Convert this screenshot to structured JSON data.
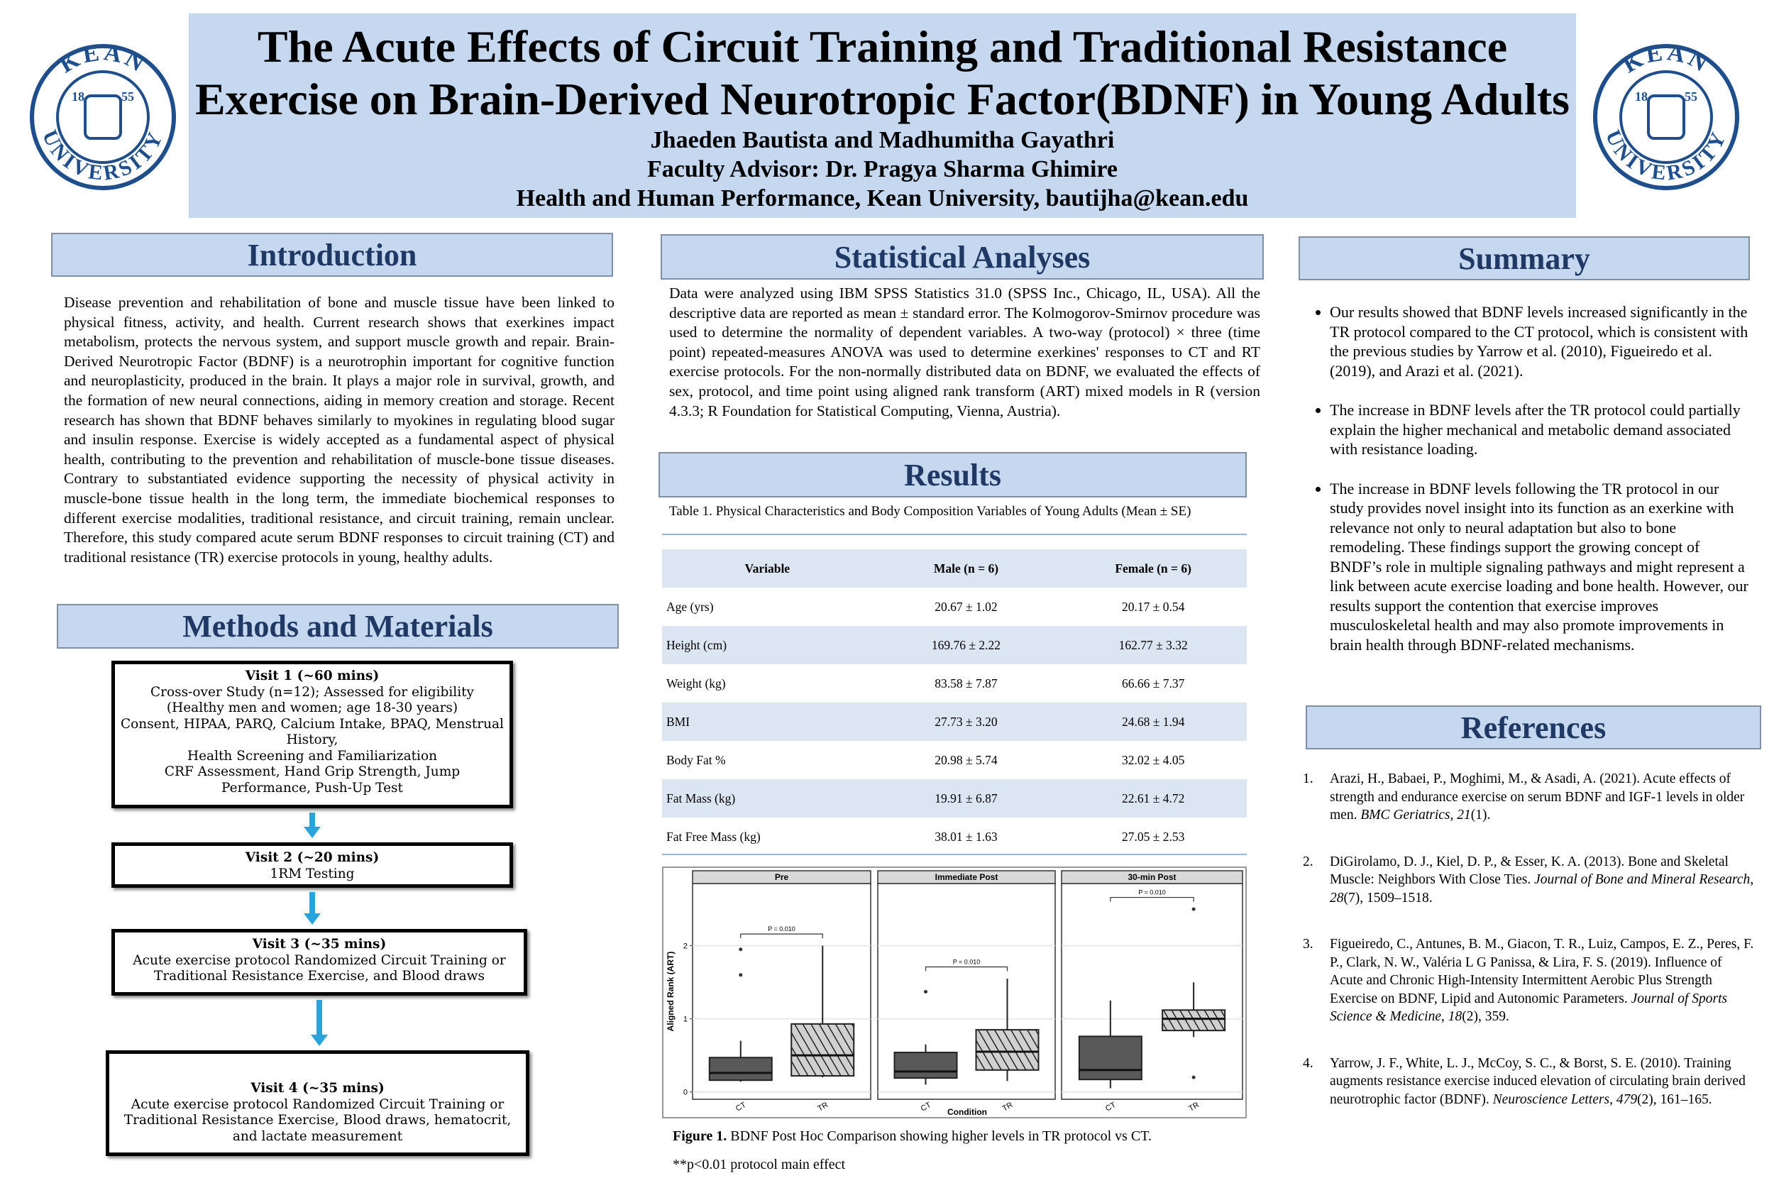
{
  "header": {
    "title_lines": [
      "The Acute Effects of Circuit Training and Traditional Resistance",
      "Exercise on Brain-Derived Neurotropic Factor(BDNF) in Young Adults"
    ],
    "authors": "Jhaeden Bautista and Madhumitha Gayathri",
    "advisor": "Faculty Advisor: Dr. Pragya Sharma Ghimire",
    "affiliation": "Health and Human Performance, Kean University, bautijha@kean.edu"
  },
  "logo": {
    "top": "KEAN",
    "bottom": "UNIVERSITY",
    "year_left": "18",
    "year_right": "55"
  },
  "introduction": {
    "heading": "Introduction",
    "text": "Disease prevention and rehabilitation of bone and muscle tissue have been linked to physical fitness, activity, and health. Current research shows that exerkines impact metabolism, protects the nervous system, and support muscle growth and repair. Brain-Derived Neurotropic Factor (BDNF) is a neurotrophin important for cognitive function and neuroplasticity, produced in the brain. It plays a major role in survival, growth, and the formation of new neural connections, aiding in memory creation and storage. Recent research has shown that BDNF behaves similarly to myokines in regulating blood sugar and insulin response. Exercise is widely accepted as a fundamental aspect of physical health, contributing to the prevention and rehabilitation of muscle-bone tissue diseases. Contrary to substantiated evidence supporting the necessity of physical activity in muscle-bone tissue health in the long term, the immediate biochemical responses to different exercise modalities, traditional resistance, and circuit training, remain unclear. Therefore, this study compared acute serum BDNF responses to circuit training (CT) and traditional resistance (TR) exercise protocols in young, healthy adults."
  },
  "methods": {
    "heading": "Methods and Materials",
    "visits": [
      {
        "title": "Visit 1 (~60 mins)",
        "lines": [
          "Cross-over Study (n=12); Assessed for eligibility",
          "(Healthy men and women; age 18-30 years)",
          "Consent, HIPAA, PARQ, Calcium Intake, BPAQ, Menstrual History,",
          "Health Screening and Familiarization",
          "CRF Assessment, Hand Grip Strength, Jump Performance, Push-Up Test"
        ]
      },
      {
        "title": "Visit 2 (~20 mins)",
        "lines": [
          "1RM Testing"
        ]
      },
      {
        "title": "Visit 3 (~35 mins)",
        "lines": [
          "Acute exercise protocol Randomized Circuit Training or Traditional Resistance Exercise, and Blood draws"
        ]
      },
      {
        "title": "Visit 4 (~35 mins)",
        "lines": [
          "Acute exercise protocol Randomized Circuit Training or Traditional Resistance Exercise, Blood draws, hematocrit, and lactate measurement"
        ]
      }
    ]
  },
  "statistics": {
    "heading": "Statistical Analyses",
    "text": "Data were analyzed using IBM SPSS Statistics 31.0 (SPSS Inc., Chicago, IL, USA). All the descriptive data are reported as mean ± standard error. The Kolmogorov-Smirnov procedure was used to determine the normality of dependent variables. A two-way (protocol) × three (time point) repeated-measures ANOVA was used to determine exerkines' responses to CT and RT exercise protocols. For the non-normally distributed data on BDNF, we evaluated the effects of sex, protocol, and time point using aligned rank transform (ART) mixed models in R (version 4.3.3; R Foundation for Statistical Computing, Vienna, Austria)."
  },
  "results": {
    "heading": "Results",
    "table": {
      "caption": "Table 1. Physical Characteristics and Body Composition Variables of Young Adults (Mean ± SE)",
      "columns": [
        "Variable",
        "Male (n = 6)",
        "Female (n = 6)"
      ],
      "rows": [
        [
          "Age (yrs)",
          "20.67 ± 1.02",
          "20.17 ± 0.54"
        ],
        [
          "Height (cm)",
          "169.76 ± 2.22",
          "162.77 ± 3.32"
        ],
        [
          "Weight (kg)",
          "83.58 ± 7.87",
          "66.66 ± 7.37"
        ],
        [
          "BMI",
          "27.73 ± 3.20",
          "24.68 ± 1.94"
        ],
        [
          "Body Fat %",
          "20.98 ± 5.74",
          "32.02 ± 4.05"
        ],
        [
          "Fat Mass (kg)",
          "19.91 ± 6.87",
          "22.61 ± 4.72"
        ],
        [
          "Fat Free Mass (kg)",
          "38.01 ± 1.63",
          "27.05 ± 2.53"
        ]
      ]
    },
    "figure": {
      "type": "box",
      "ylabel": "Aligned Rank (ART)",
      "xlabel": "Condition",
      "ylim": [
        -0.1,
        2.85
      ],
      "yticks": [
        0,
        1,
        2
      ],
      "panels": [
        {
          "title": "Pre",
          "annotation": "P = 0.010",
          "boxes": [
            {
              "label": "CT",
              "whisker_low": 0.14,
              "q1": 0.16,
              "median": 0.26,
              "q3": 0.47,
              "whisker_high": 0.7,
              "outliers": [
                1.6,
                1.95
              ]
            },
            {
              "label": "TR",
              "whisker_low": 0.2,
              "q1": 0.22,
              "median": 0.5,
              "q3": 0.93,
              "whisker_high": 2.0,
              "outliers": []
            }
          ]
        },
        {
          "title": "Immediate Post",
          "annotation": "P = 0.010",
          "boxes": [
            {
              "label": "CT",
              "whisker_low": 0.1,
              "q1": 0.19,
              "median": 0.28,
              "q3": 0.54,
              "whisker_high": 0.65,
              "outliers": [
                1.37
              ]
            },
            {
              "label": "TR",
              "whisker_low": 0.15,
              "q1": 0.3,
              "median": 0.55,
              "q3": 0.85,
              "whisker_high": 1.55,
              "outliers": []
            }
          ]
        },
        {
          "title": "30-min Post",
          "annotation": "P = 0.010",
          "boxes": [
            {
              "label": "CT",
              "whisker_low": 0.05,
              "q1": 0.17,
              "median": 0.3,
              "q3": 0.76,
              "whisker_high": 1.25,
              "outliers": []
            },
            {
              "label": "TR",
              "whisker_low": 0.75,
              "q1": 0.84,
              "median": 1.0,
              "q3": 1.12,
              "whisker_high": 1.5,
              "outliers": [
                2.5,
                0.2
              ]
            }
          ]
        }
      ],
      "caption_label": "Figure 1.",
      "caption": "BDNF Post Hoc Comparison showing higher levels in TR protocol vs CT.",
      "note": "**p<0.01 protocol main effect"
    }
  },
  "summary": {
    "heading": "Summary",
    "bullets": [
      "Our results showed that BDNF levels increased significantly in the TR protocol compared to the CT protocol, which is consistent with the previous studies by Yarrow et al. (2010), Figueiredo et al. (2019), and Arazi et al. (2021).",
      "The increase in BDNF levels after the TR protocol could partially explain the higher mechanical and metabolic demand associated with resistance loading.",
      "The increase in BDNF levels following the TR protocol in our study provides novel insight into its function as an exerkine with relevance not only to neural adaptation but also to bone remodeling. These findings support the growing concept of BNDF’s role in multiple signaling pathways and might represent a link between acute exercise loading and bone health. However, our results support the contention that exercise improves musculoskeletal health and may also promote improvements in brain health through BDNF-related mechanisms."
    ]
  },
  "references": {
    "heading": "References",
    "items": [
      {
        "number": "1.",
        "parts": [
          "Arazi, H., Babaei, P., Moghimi, M., & Asadi, A. (2021). Acute effects of strength and endurance exercise on serum BDNF and IGF-1 levels in older men. ",
          {
            "text": "BMC Geriatrics",
            "italic": true
          },
          ", ",
          {
            "text": "21",
            "italic": true
          },
          "(1)."
        ]
      },
      {
        "number": "2.",
        "parts": [
          "DiGirolamo, D. J., Kiel, D. P., & Esser, K. A. (2013). Bone and Skeletal Muscle: Neighbors With Close Ties. ",
          {
            "text": "Journal of Bone and Mineral Research",
            "italic": true
          },
          ", ",
          {
            "text": "28",
            "italic": true
          },
          "(7), 1509–1518."
        ]
      },
      {
        "number": "3.",
        "parts": [
          "Figueiredo, C., Antunes, B. M., Giacon, T. R., Luiz, Campos, E. Z., Peres, F. P., Clark, N. W., Valéria L G Panissa, & Lira, F. S. (2019). Influence of Acute and Chronic High-Intensity Intermittent Aerobic Plus Strength Exercise on BDNF, Lipid and Autonomic Parameters. ",
          {
            "text": "Journal of Sports Science & Medicine",
            "italic": true
          },
          ", ",
          {
            "text": "18",
            "italic": true
          },
          "(2), 359."
        ]
      },
      {
        "number": "4.",
        "parts": [
          "Yarrow, J. F., White, L. J., McCoy, S. C., & Borst, S. E. (2010). Training augments resistance exercise induced elevation of circulating brain derived neurotrophic factor (BDNF). ",
          {
            "text": "Neuroscience Letters",
            "italic": true
          },
          ", ",
          {
            "text": "479",
            "italic": true
          },
          "(2), 161–165."
        ]
      }
    ]
  }
}
